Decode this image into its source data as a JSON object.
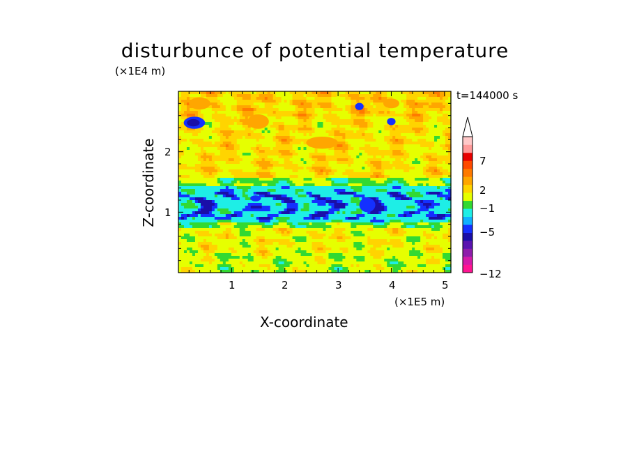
{
  "title": "disturbunce of potential temperature",
  "time_label": "t=144000 s",
  "colors": {
    "levels": [
      "#ff1493",
      "#d41aa8",
      "#8e1dab",
      "#5a14b0",
      "#1a0fa8",
      "#1430ff",
      "#10b0ff",
      "#1eeee6",
      "#32d932",
      "#e6ff00",
      "#ffd400",
      "#ffa600",
      "#ff7a00",
      "#ff4a00",
      "#e60000",
      "#ff9a9a",
      "#ffc8c8"
    ]
  },
  "chart_data": {
    "type": "heatmap",
    "title": "disturbunce of potential temperature",
    "xlabel": "X-coordinate",
    "ylabel": "Z-coordinate",
    "x_multiplier": "(×1E5 m)",
    "y_multiplier": "(×1E4 m)",
    "xlim": [
      0,
      5.12
    ],
    "ylim": [
      0,
      3.0
    ],
    "x_ticks": [
      "1",
      "2",
      "3",
      "4",
      "5"
    ],
    "y_ticks": [
      "1",
      "2"
    ],
    "colorbar_labels": [
      "7",
      "2",
      "−1",
      "−5",
      "−12"
    ],
    "z_bands": [
      {
        "z_range": [
          0.0,
          0.75
        ],
        "dominant": "yellow/green (~0 to +1)"
      },
      {
        "z_range": [
          0.75,
          1.45
        ],
        "dominant": "cyan with blue patches (~−1 to −5)"
      },
      {
        "z_range": [
          1.45,
          2.6
        ],
        "dominant": "yellow/orange with green streaks"
      },
      {
        "z_range": [
          2.6,
          3.0
        ],
        "dominant": "yellow/orange with blue cells"
      }
    ]
  }
}
